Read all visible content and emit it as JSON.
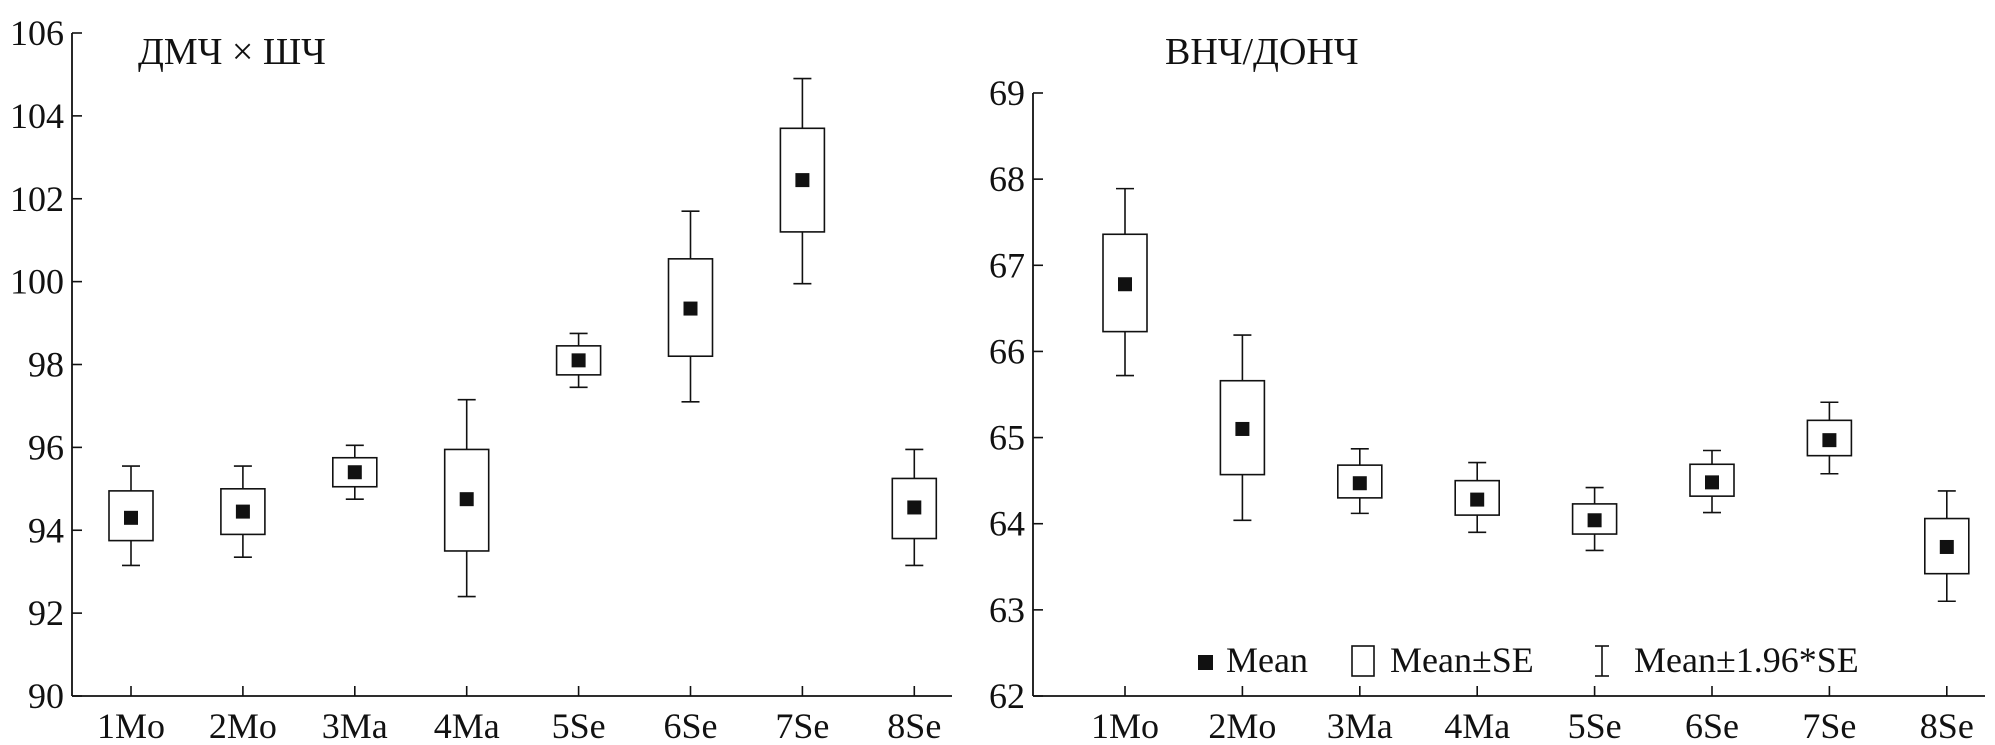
{
  "chart_data": [
    {
      "type": "box",
      "title": "ДМЧ × ШЧ",
      "categories": [
        "1Mo",
        "2Mo",
        "3Ma",
        "4Ma",
        "5Se",
        "6Se",
        "7Se",
        "8Se"
      ],
      "ylim": [
        90,
        106
      ],
      "yticks": [
        "90",
        "92",
        "94",
        "96",
        "98",
        "100",
        "102",
        "104",
        "106"
      ],
      "series": [
        {
          "mean": [
            94.3,
            94.45,
            95.4,
            94.75,
            98.1,
            99.35,
            102.45,
            94.55
          ],
          "se_low": [
            93.75,
            93.9,
            95.05,
            93.5,
            97.75,
            98.2,
            101.2,
            93.8
          ],
          "se_high": [
            94.95,
            95.0,
            95.75,
            95.95,
            98.45,
            100.55,
            103.7,
            95.25
          ],
          "ci_low": [
            93.15,
            93.35,
            94.75,
            92.4,
            97.45,
            97.1,
            99.95,
            93.15
          ],
          "ci_high": [
            95.55,
            95.55,
            96.05,
            97.15,
            98.75,
            101.7,
            104.9,
            95.95
          ]
        }
      ],
      "grid": false
    },
    {
      "type": "box",
      "title": "ВНЧ/ДОНЧ",
      "categories": [
        "1Mo",
        "2Mo",
        "3Ma",
        "4Ma",
        "5Se",
        "6Se",
        "7Se",
        "8Se"
      ],
      "ylim": [
        62,
        69
      ],
      "yticks": [
        "62",
        "63",
        "64",
        "65",
        "66",
        "67",
        "68",
        "69"
      ],
      "series": [
        {
          "mean": [
            66.78,
            65.1,
            64.47,
            64.28,
            64.04,
            64.48,
            64.97,
            63.73
          ],
          "se_low": [
            66.23,
            64.57,
            64.3,
            64.1,
            63.88,
            64.32,
            64.79,
            63.42
          ],
          "se_high": [
            67.36,
            65.66,
            64.68,
            64.5,
            64.23,
            64.69,
            65.2,
            64.06
          ],
          "ci_low": [
            65.72,
            64.04,
            64.12,
            63.9,
            63.69,
            64.13,
            64.58,
            63.1
          ],
          "ci_high": [
            67.89,
            66.19,
            64.87,
            64.71,
            64.42,
            64.85,
            65.41,
            64.38
          ]
        }
      ],
      "grid": false,
      "legend": {
        "placement": "bottom",
        "items": [
          {
            "symbol": "filled-square",
            "label": "Mean"
          },
          {
            "symbol": "open-box",
            "label": "Mean±SE"
          },
          {
            "symbol": "whisker",
            "label": "Mean±1.96*SE"
          }
        ]
      }
    }
  ]
}
